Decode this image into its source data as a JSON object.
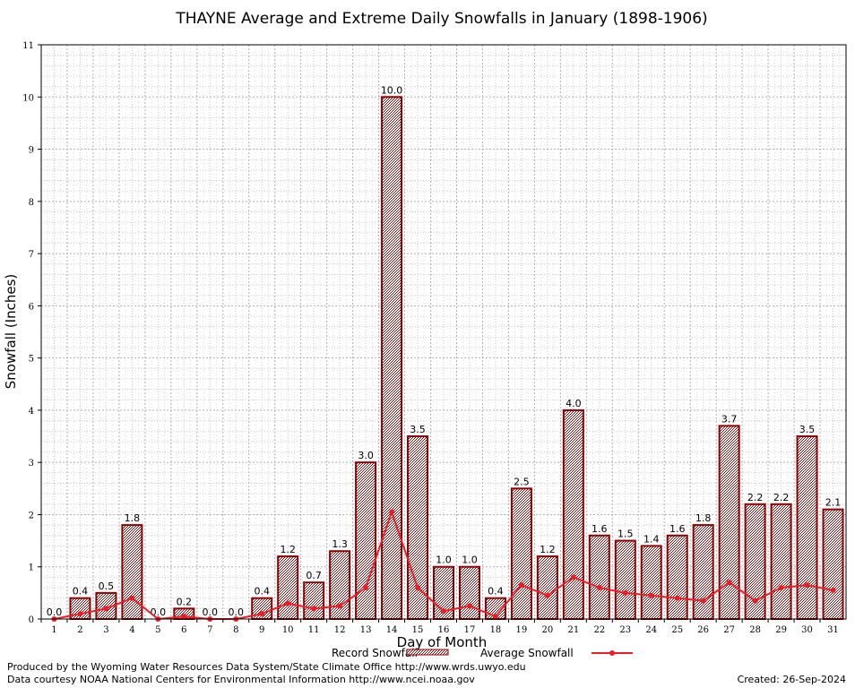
{
  "chart_data": {
    "type": "bar",
    "title": "THAYNE Average and Extreme Daily Snowfalls in January (1898-1906)",
    "xlabel": "Day of Month",
    "ylabel": "Snowfall (Inches)",
    "ylim": [
      0,
      11
    ],
    "yticks": [
      0,
      1,
      2,
      3,
      4,
      5,
      6,
      7,
      8,
      9,
      10,
      11
    ],
    "grid": true,
    "categories": [
      "1",
      "2",
      "3",
      "4",
      "5",
      "6",
      "7",
      "8",
      "9",
      "10",
      "11",
      "12",
      "13",
      "14",
      "15",
      "16",
      "17",
      "18",
      "19",
      "20",
      "21",
      "22",
      "23",
      "24",
      "25",
      "26",
      "27",
      "28",
      "29",
      "30",
      "31"
    ],
    "series": [
      {
        "name": "Record Snowfall",
        "kind": "bar",
        "color": "#8b0000",
        "values": [
          0.0,
          0.4,
          0.5,
          1.8,
          0.0,
          0.2,
          0.0,
          0.0,
          0.4,
          1.2,
          0.7,
          1.3,
          3.0,
          10.0,
          3.5,
          1.0,
          1.0,
          0.4,
          2.5,
          1.2,
          4.0,
          1.6,
          1.5,
          1.4,
          1.6,
          1.8,
          3.7,
          2.2,
          2.2,
          3.5,
          2.1
        ],
        "labels": [
          "0.0",
          "0.4",
          "0.5",
          "1.8",
          "0.0",
          "0.2",
          "0.0",
          "0.0",
          "0.4",
          "1.2",
          "0.7",
          "1.3",
          "3.0",
          "10.0",
          "3.5",
          "1.0",
          "1.0",
          "0.4",
          "2.5",
          "1.2",
          "4.0",
          "1.6",
          "1.5",
          "1.4",
          "1.6",
          "1.8",
          "3.7",
          "2.2",
          "2.2",
          "3.5",
          "2.1"
        ]
      },
      {
        "name": "Average Snowfall",
        "kind": "line",
        "color": "#ee1c24",
        "values": [
          0.0,
          0.1,
          0.2,
          0.4,
          0.0,
          0.05,
          0.0,
          0.0,
          0.1,
          0.3,
          0.2,
          0.25,
          0.6,
          2.05,
          0.6,
          0.15,
          0.25,
          0.05,
          0.65,
          0.45,
          0.8,
          0.6,
          0.5,
          0.45,
          0.4,
          0.35,
          0.7,
          0.35,
          0.6,
          0.65,
          0.55
        ]
      }
    ],
    "legend_position": "bottom-center"
  },
  "footer": {
    "line1": "Produced by the Wyoming Water Resources Data System/State Climate Office http://www.wrds.uwyo.edu",
    "line2": "Data courtesy NOAA National Centers for Environmental Information http://www.ncei.noaa.gov",
    "created": "Created:  26-Sep-2024"
  }
}
